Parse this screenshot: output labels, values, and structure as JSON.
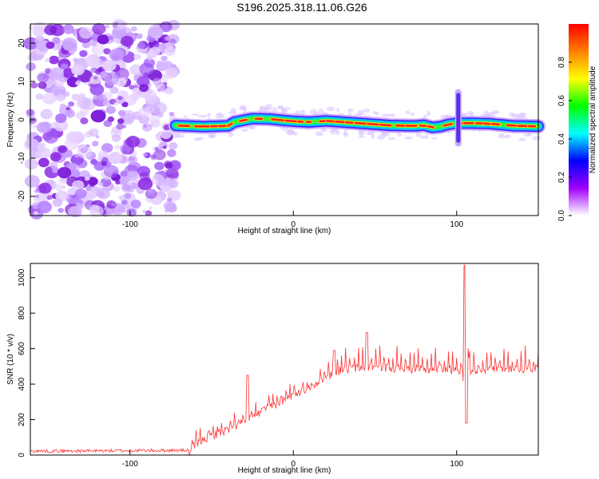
{
  "title": "S196.2025.318.11.06.G26",
  "chart_data": [
    {
      "type": "heatmap",
      "name": "spectrogram",
      "xlabel": "Height of straight line (km)",
      "ylabel": "Frequency (Hz)",
      "xlim": [
        -161,
        150
      ],
      "ylim": [
        -25,
        25
      ],
      "xticks": [
        "-100",
        "0",
        "100"
      ],
      "xtick_values": [
        -100,
        0,
        100
      ],
      "yticks": [
        "-20",
        "-10",
        "0",
        "10",
        "20"
      ],
      "ytick_values": [
        -20,
        -10,
        0,
        10,
        20
      ],
      "noise_region_x": [
        -161,
        -72
      ],
      "signal_ridge": {
        "x": [
          -72,
          -55,
          -40,
          -36,
          -25,
          -15,
          0,
          10,
          20,
          30,
          50,
          60,
          75,
          80,
          85,
          90,
          95,
          100,
          110,
          120,
          135,
          150
        ],
        "y": [
          -1.5,
          -1.8,
          -1.6,
          -0.6,
          0.3,
          0.2,
          -0.4,
          -0.6,
          -0.3,
          -0.6,
          -1.2,
          -1.5,
          -1.6,
          -1.4,
          -2.0,
          -1.8,
          -1.2,
          -0.9,
          -0.9,
          -1.0,
          -1.6,
          -1.7
        ]
      },
      "spike": {
        "x": 101,
        "y_range": [
          -7,
          8
        ]
      },
      "colorbar": {
        "label": "Normalized spectral amplitude",
        "range": [
          0.0,
          1.0
        ],
        "ticks": [
          "0.0",
          "0.2",
          "0.4",
          "0.6",
          "0.8"
        ],
        "tick_values": [
          0.0,
          0.2,
          0.4,
          0.6,
          0.8
        ],
        "colors": [
          "#ffffff",
          "#a000ff",
          "#0000ff",
          "#00ffff",
          "#00ff00",
          "#ffff00",
          "#ff7f00",
          "#ff0000"
        ]
      }
    },
    {
      "type": "line",
      "name": "snr",
      "xlabel": "Height of straight line (km)",
      "ylabel": "SNR (10 * v/v)",
      "xlim": [
        -161,
        150
      ],
      "ylim": [
        0,
        1080
      ],
      "xticks": [
        "-100",
        "0",
        "100"
      ],
      "xtick_values": [
        -100,
        0,
        100
      ],
      "yticks": [
        "0",
        "200",
        "400",
        "600",
        "800",
        "1000"
      ],
      "ytick_values": [
        0,
        200,
        400,
        600,
        800,
        1000
      ],
      "line_color": "#ff3333",
      "envelope": {
        "x": [
          -161,
          -64,
          -60,
          -50,
          -40,
          -30,
          -20,
          -10,
          0,
          10,
          20,
          30,
          40,
          50,
          60,
          70,
          80,
          90,
          100,
          110,
          120,
          130,
          140,
          150
        ],
        "y": [
          20,
          25,
          80,
          130,
          160,
          210,
          260,
          310,
          360,
          400,
          460,
          500,
          510,
          520,
          510,
          505,
          500,
          505,
          500,
          500,
          500,
          505,
          505,
          510
        ]
      },
      "peaks": [
        {
          "x": -28,
          "y": 450
        },
        {
          "x": 25,
          "y": 590
        },
        {
          "x": 45,
          "y": 690
        },
        {
          "x": 105,
          "y": 1070
        },
        {
          "x": 106,
          "y": 180
        }
      ]
    }
  ]
}
